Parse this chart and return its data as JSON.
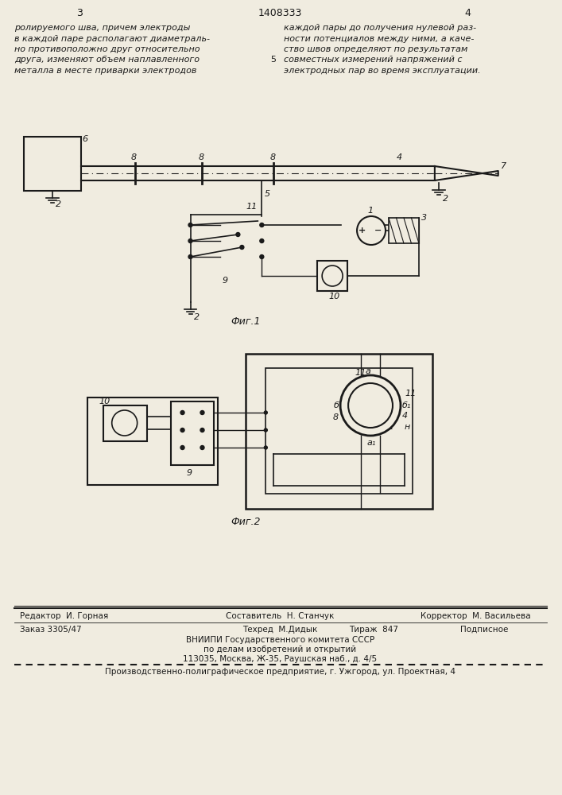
{
  "page_number_left": "3",
  "page_number_center": "1408333",
  "page_number_right": "4",
  "text_left": "ролируемого шва, причем электроды\nв каждой паре располагают диаметраль-\nно противоположно друг относительно\nдруга, изменяют объем наплавленного\nметалла в месте приварки электродов",
  "text_right": "каждой пары до получения нулевой раз-\nности потенциалов между ними, а каче-\nство швов определяют по результатам\nсовместных измерений напряжений с\nэлектродных пар во время эксплуатации.",
  "line_number_5": "5",
  "fig1_label": "Фиг.1",
  "fig2_label": "Фиг.2",
  "footer_editor": "Редактор  И. Горная",
  "footer_composer": "Составитель  Н. Станчук",
  "footer_corrector": "Корректор  М. Васильева",
  "footer_order": "Заказ 3305/47",
  "footer_techred": "Техред  М.Дидык",
  "footer_tirazh": "Тираж  847",
  "footer_podpisnoe": "Подписное",
  "footer_vniiipi": "ВНИИПИ Государственного комитета СССР",
  "footer_po_delam": "по делам изобретений и открытий",
  "footer_address": "113035, Москва, Ж-35, Раушская наб., д. 4/5",
  "footer_production": "Производственно-полиграфическое предприятие, г. Ужгород, ул. Проектная, 4",
  "bg_color": "#f0ece0",
  "line_color": "#1a1a1a",
  "text_color": "#1a1a1a"
}
